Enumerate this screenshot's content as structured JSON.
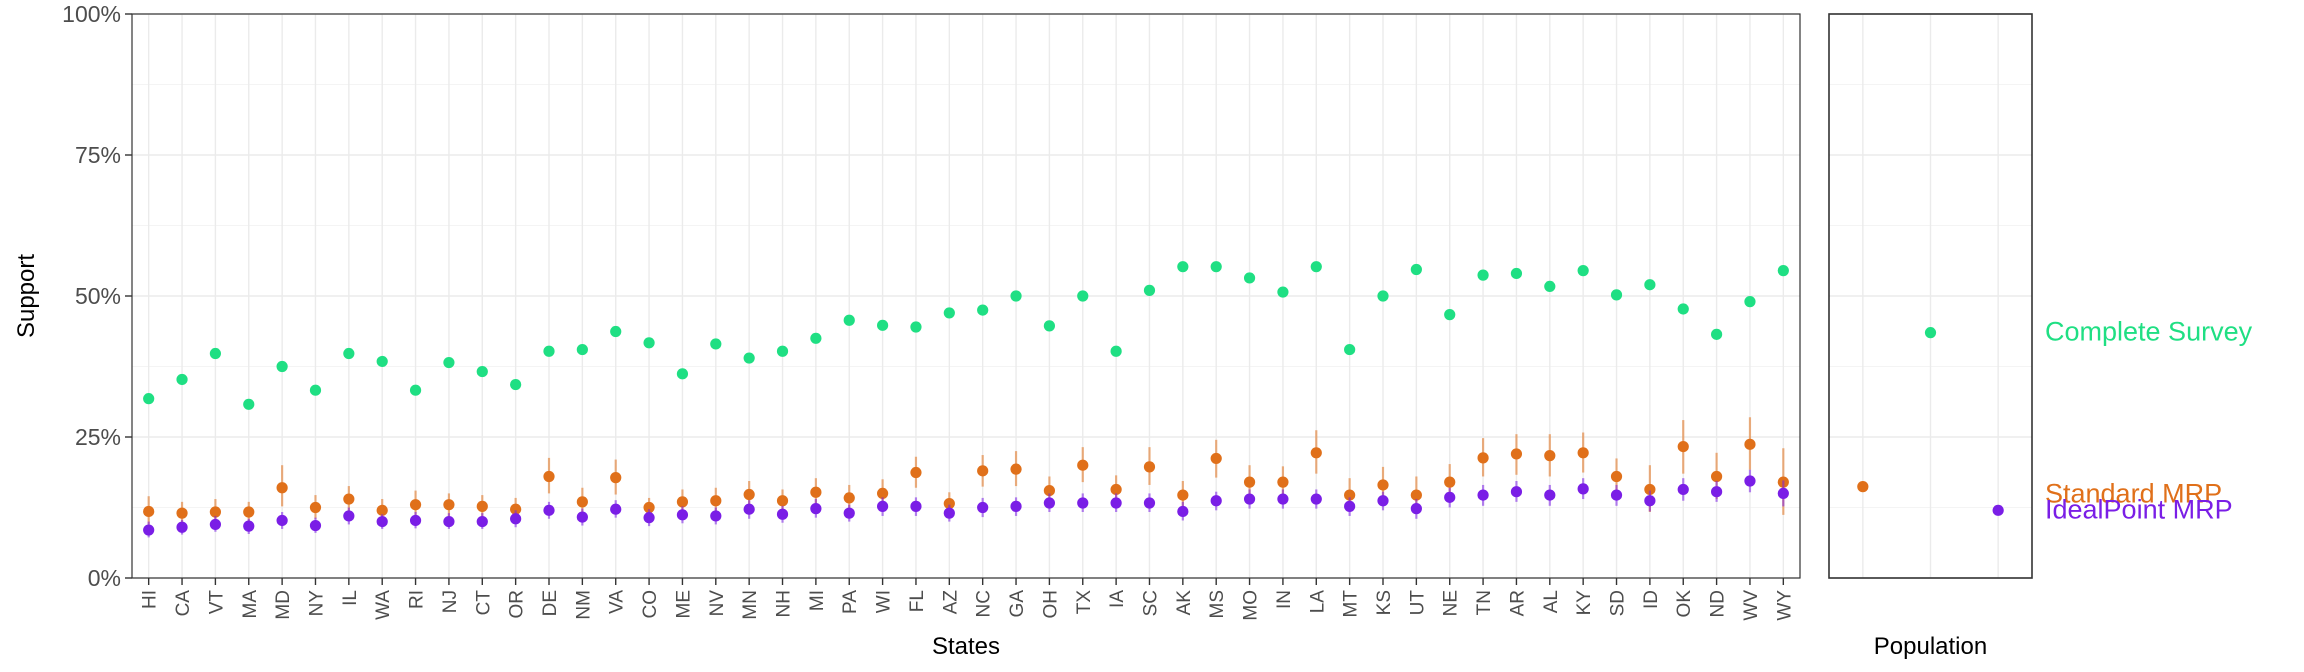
{
  "chart_data": [
    {
      "type": "scatter",
      "xlabel": "States",
      "ylabel": "Support",
      "ylim": [
        0,
        1
      ],
      "yticks": [
        {
          "value": 0,
          "label": "0%"
        },
        {
          "value": 0.25,
          "label": "25%"
        },
        {
          "value": 0.5,
          "label": "50%"
        },
        {
          "value": 0.75,
          "label": "75%"
        },
        {
          "value": 1,
          "label": "100%"
        }
      ],
      "grid": true,
      "categories": [
        "HI",
        "CA",
        "VT",
        "MA",
        "MD",
        "NY",
        "IL",
        "WA",
        "RI",
        "NJ",
        "CT",
        "OR",
        "DE",
        "NM",
        "VA",
        "CO",
        "ME",
        "NV",
        "MN",
        "NH",
        "MI",
        "PA",
        "WI",
        "FL",
        "AZ",
        "NC",
        "GA",
        "OH",
        "TX",
        "IA",
        "SC",
        "AK",
        "MS",
        "MO",
        "IN",
        "LA",
        "MT",
        "KS",
        "UT",
        "NE",
        "TN",
        "AR",
        "AL",
        "KY",
        "SD",
        "ID",
        "OK",
        "ND",
        "WV",
        "WY"
      ],
      "series": [
        {
          "name": "Complete Survey",
          "color": "#1fdf83",
          "values": [
            0.318,
            0.352,
            0.398,
            0.308,
            0.375,
            0.333,
            0.398,
            0.384,
            0.333,
            0.382,
            0.366,
            0.343,
            0.402,
            0.405,
            0.437,
            0.417,
            0.362,
            0.415,
            0.39,
            0.402,
            0.425,
            0.457,
            0.448,
            0.445,
            0.47,
            0.475,
            0.5,
            0.447,
            0.5,
            0.402,
            0.51,
            0.552,
            0.552,
            0.532,
            0.507,
            0.552,
            0.405,
            0.5,
            0.547,
            0.467,
            0.537,
            0.54,
            0.517,
            0.545,
            0.502,
            0.52,
            0.477,
            0.432,
            0.49,
            0.545
          ]
        },
        {
          "name": "Standard MRP",
          "color": "#e0701a",
          "values": [
            0.118,
            0.115,
            0.117,
            0.117,
            0.16,
            0.125,
            0.14,
            0.12,
            0.13,
            0.13,
            0.127,
            0.122,
            0.18,
            0.135,
            0.178,
            0.125,
            0.135,
            0.137,
            0.148,
            0.137,
            0.152,
            0.142,
            0.15,
            0.187,
            0.132,
            0.19,
            0.193,
            0.155,
            0.2,
            0.157,
            0.197,
            0.147,
            0.212,
            0.17,
            0.17,
            0.222,
            0.147,
            0.165,
            0.147,
            0.17,
            0.213,
            0.22,
            0.217,
            0.222,
            0.18,
            0.157,
            0.233,
            0.18,
            0.237,
            0.17
          ],
          "error_low": [
            0.095,
            0.097,
            0.097,
            0.1,
            0.127,
            0.105,
            0.115,
            0.102,
            0.107,
            0.11,
            0.107,
            0.105,
            0.15,
            0.115,
            0.148,
            0.11,
            0.115,
            0.117,
            0.127,
            0.117,
            0.13,
            0.122,
            0.127,
            0.16,
            0.112,
            0.162,
            0.163,
            0.132,
            0.17,
            0.133,
            0.165,
            0.125,
            0.178,
            0.145,
            0.145,
            0.185,
            0.12,
            0.137,
            0.117,
            0.14,
            0.18,
            0.183,
            0.18,
            0.187,
            0.15,
            0.117,
            0.185,
            0.14,
            0.192,
            0.112
          ],
          "error_high": [
            0.145,
            0.135,
            0.14,
            0.135,
            0.2,
            0.147,
            0.163,
            0.14,
            0.155,
            0.15,
            0.147,
            0.142,
            0.213,
            0.16,
            0.21,
            0.142,
            0.157,
            0.16,
            0.172,
            0.157,
            0.177,
            0.165,
            0.175,
            0.215,
            0.152,
            0.218,
            0.225,
            0.18,
            0.232,
            0.182,
            0.232,
            0.172,
            0.245,
            0.2,
            0.198,
            0.262,
            0.177,
            0.197,
            0.18,
            0.202,
            0.248,
            0.255,
            0.255,
            0.258,
            0.212,
            0.2,
            0.28,
            0.222,
            0.285,
            0.23
          ]
        },
        {
          "name": "IdealPoint MRP",
          "color": "#7a1ee6",
          "values": [
            0.085,
            0.09,
            0.095,
            0.092,
            0.102,
            0.093,
            0.11,
            0.1,
            0.102,
            0.1,
            0.1,
            0.105,
            0.12,
            0.108,
            0.122,
            0.107,
            0.112,
            0.11,
            0.122,
            0.113,
            0.123,
            0.115,
            0.127,
            0.127,
            0.115,
            0.125,
            0.127,
            0.133,
            0.133,
            0.133,
            0.133,
            0.118,
            0.137,
            0.14,
            0.14,
            0.14,
            0.127,
            0.137,
            0.123,
            0.143,
            0.147,
            0.153,
            0.147,
            0.158,
            0.147,
            0.137,
            0.157,
            0.153,
            0.172,
            0.15
          ],
          "error_low": [
            0.072,
            0.077,
            0.082,
            0.078,
            0.087,
            0.08,
            0.095,
            0.087,
            0.088,
            0.087,
            0.087,
            0.09,
            0.105,
            0.093,
            0.107,
            0.092,
            0.097,
            0.095,
            0.105,
            0.098,
            0.107,
            0.1,
            0.11,
            0.11,
            0.1,
            0.108,
            0.11,
            0.117,
            0.117,
            0.117,
            0.117,
            0.102,
            0.12,
            0.123,
            0.123,
            0.123,
            0.11,
            0.12,
            0.105,
            0.125,
            0.128,
            0.135,
            0.128,
            0.14,
            0.128,
            0.118,
            0.137,
            0.135,
            0.152,
            0.127
          ],
          "error_high": [
            0.1,
            0.103,
            0.11,
            0.105,
            0.117,
            0.107,
            0.125,
            0.113,
            0.117,
            0.115,
            0.115,
            0.12,
            0.135,
            0.123,
            0.138,
            0.122,
            0.127,
            0.125,
            0.138,
            0.128,
            0.14,
            0.13,
            0.143,
            0.143,
            0.13,
            0.142,
            0.143,
            0.15,
            0.15,
            0.15,
            0.15,
            0.135,
            0.153,
            0.157,
            0.157,
            0.157,
            0.143,
            0.153,
            0.14,
            0.16,
            0.165,
            0.172,
            0.165,
            0.177,
            0.165,
            0.155,
            0.177,
            0.172,
            0.192,
            0.173
          ]
        }
      ]
    },
    {
      "type": "scatter",
      "xlabel": "Population",
      "ylim": [
        0,
        1
      ],
      "grid": true,
      "points": [
        {
          "series": "Standard MRP",
          "x_position": 1,
          "value": 0.162,
          "color": "#e0701a"
        },
        {
          "series": "Complete Survey",
          "x_position": 2,
          "value": 0.435,
          "color": "#1fdf83"
        },
        {
          "series": "IdealPoint MRP",
          "x_position": 3,
          "value": 0.12,
          "color": "#7a1ee6"
        }
      ]
    }
  ],
  "legend": [
    {
      "label": "Complete Survey",
      "color": "#1fdf83",
      "value": 0.435
    },
    {
      "label": "Standard MRP",
      "color": "#e0701a",
      "value": 0.162
    },
    {
      "label": "IdealPoint MRP",
      "color": "#7a1ee6",
      "value": 0.12
    }
  ]
}
